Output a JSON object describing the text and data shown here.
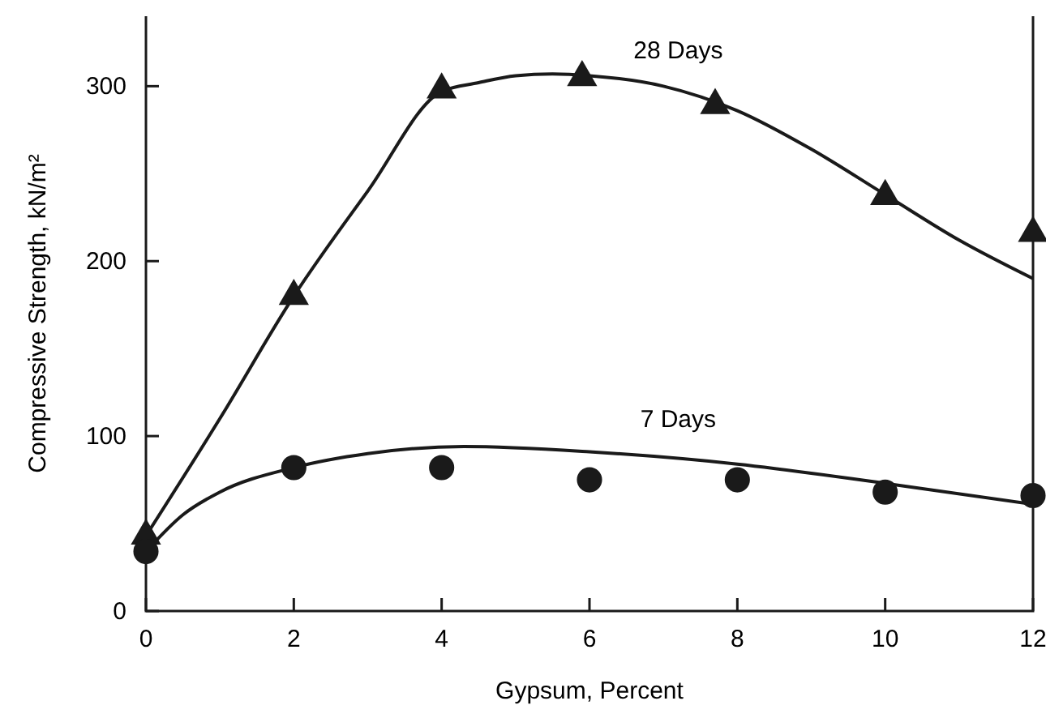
{
  "chart_data": {
    "type": "scatter",
    "xlabel": "Gypsum, Percent",
    "ylabel": "Compressive Strength, kN/m²",
    "xlim": [
      0,
      12
    ],
    "ylim": [
      0,
      340
    ],
    "xticks": [
      0,
      2,
      4,
      6,
      8,
      10,
      12
    ],
    "yticks": [
      0,
      100,
      200,
      300
    ],
    "grid": false,
    "series": [
      {
        "name": "28 Days",
        "type": "line",
        "color": "#1a1a1a",
        "marker": "none",
        "line_style": "solid",
        "x": [
          0,
          1,
          2,
          3,
          4,
          4.5,
          5,
          5.5,
          6,
          7,
          8,
          9,
          10,
          11,
          12
        ],
        "values": [
          43,
          110,
          180,
          240,
          297,
          302,
          306,
          307,
          306,
          300,
          286,
          264,
          238,
          212,
          190
        ]
      },
      {
        "name": "7 Days",
        "type": "line",
        "color": "#1a1a1a",
        "marker": "none",
        "line_style": "solid",
        "x": [
          0,
          0.5,
          1,
          2,
          3,
          4.3,
          6,
          8,
          10,
          12
        ],
        "values": [
          34,
          55,
          68,
          82,
          90,
          94,
          91,
          84,
          73,
          61
        ]
      },
      {
        "color": "#1a1a1a",
        "marker": "triangle",
        "x": [
          0,
          2,
          4,
          5.9,
          7.7,
          10,
          12
        ],
        "values": [
          43,
          180,
          298,
          305,
          289,
          237,
          216
        ]
      },
      {
        "color": "#1a1a1a",
        "marker": "circle",
        "x": [
          0,
          2,
          4,
          6,
          8,
          10,
          12
        ],
        "values": [
          34,
          82,
          82,
          75,
          75,
          68,
          66
        ]
      }
    ]
  }
}
